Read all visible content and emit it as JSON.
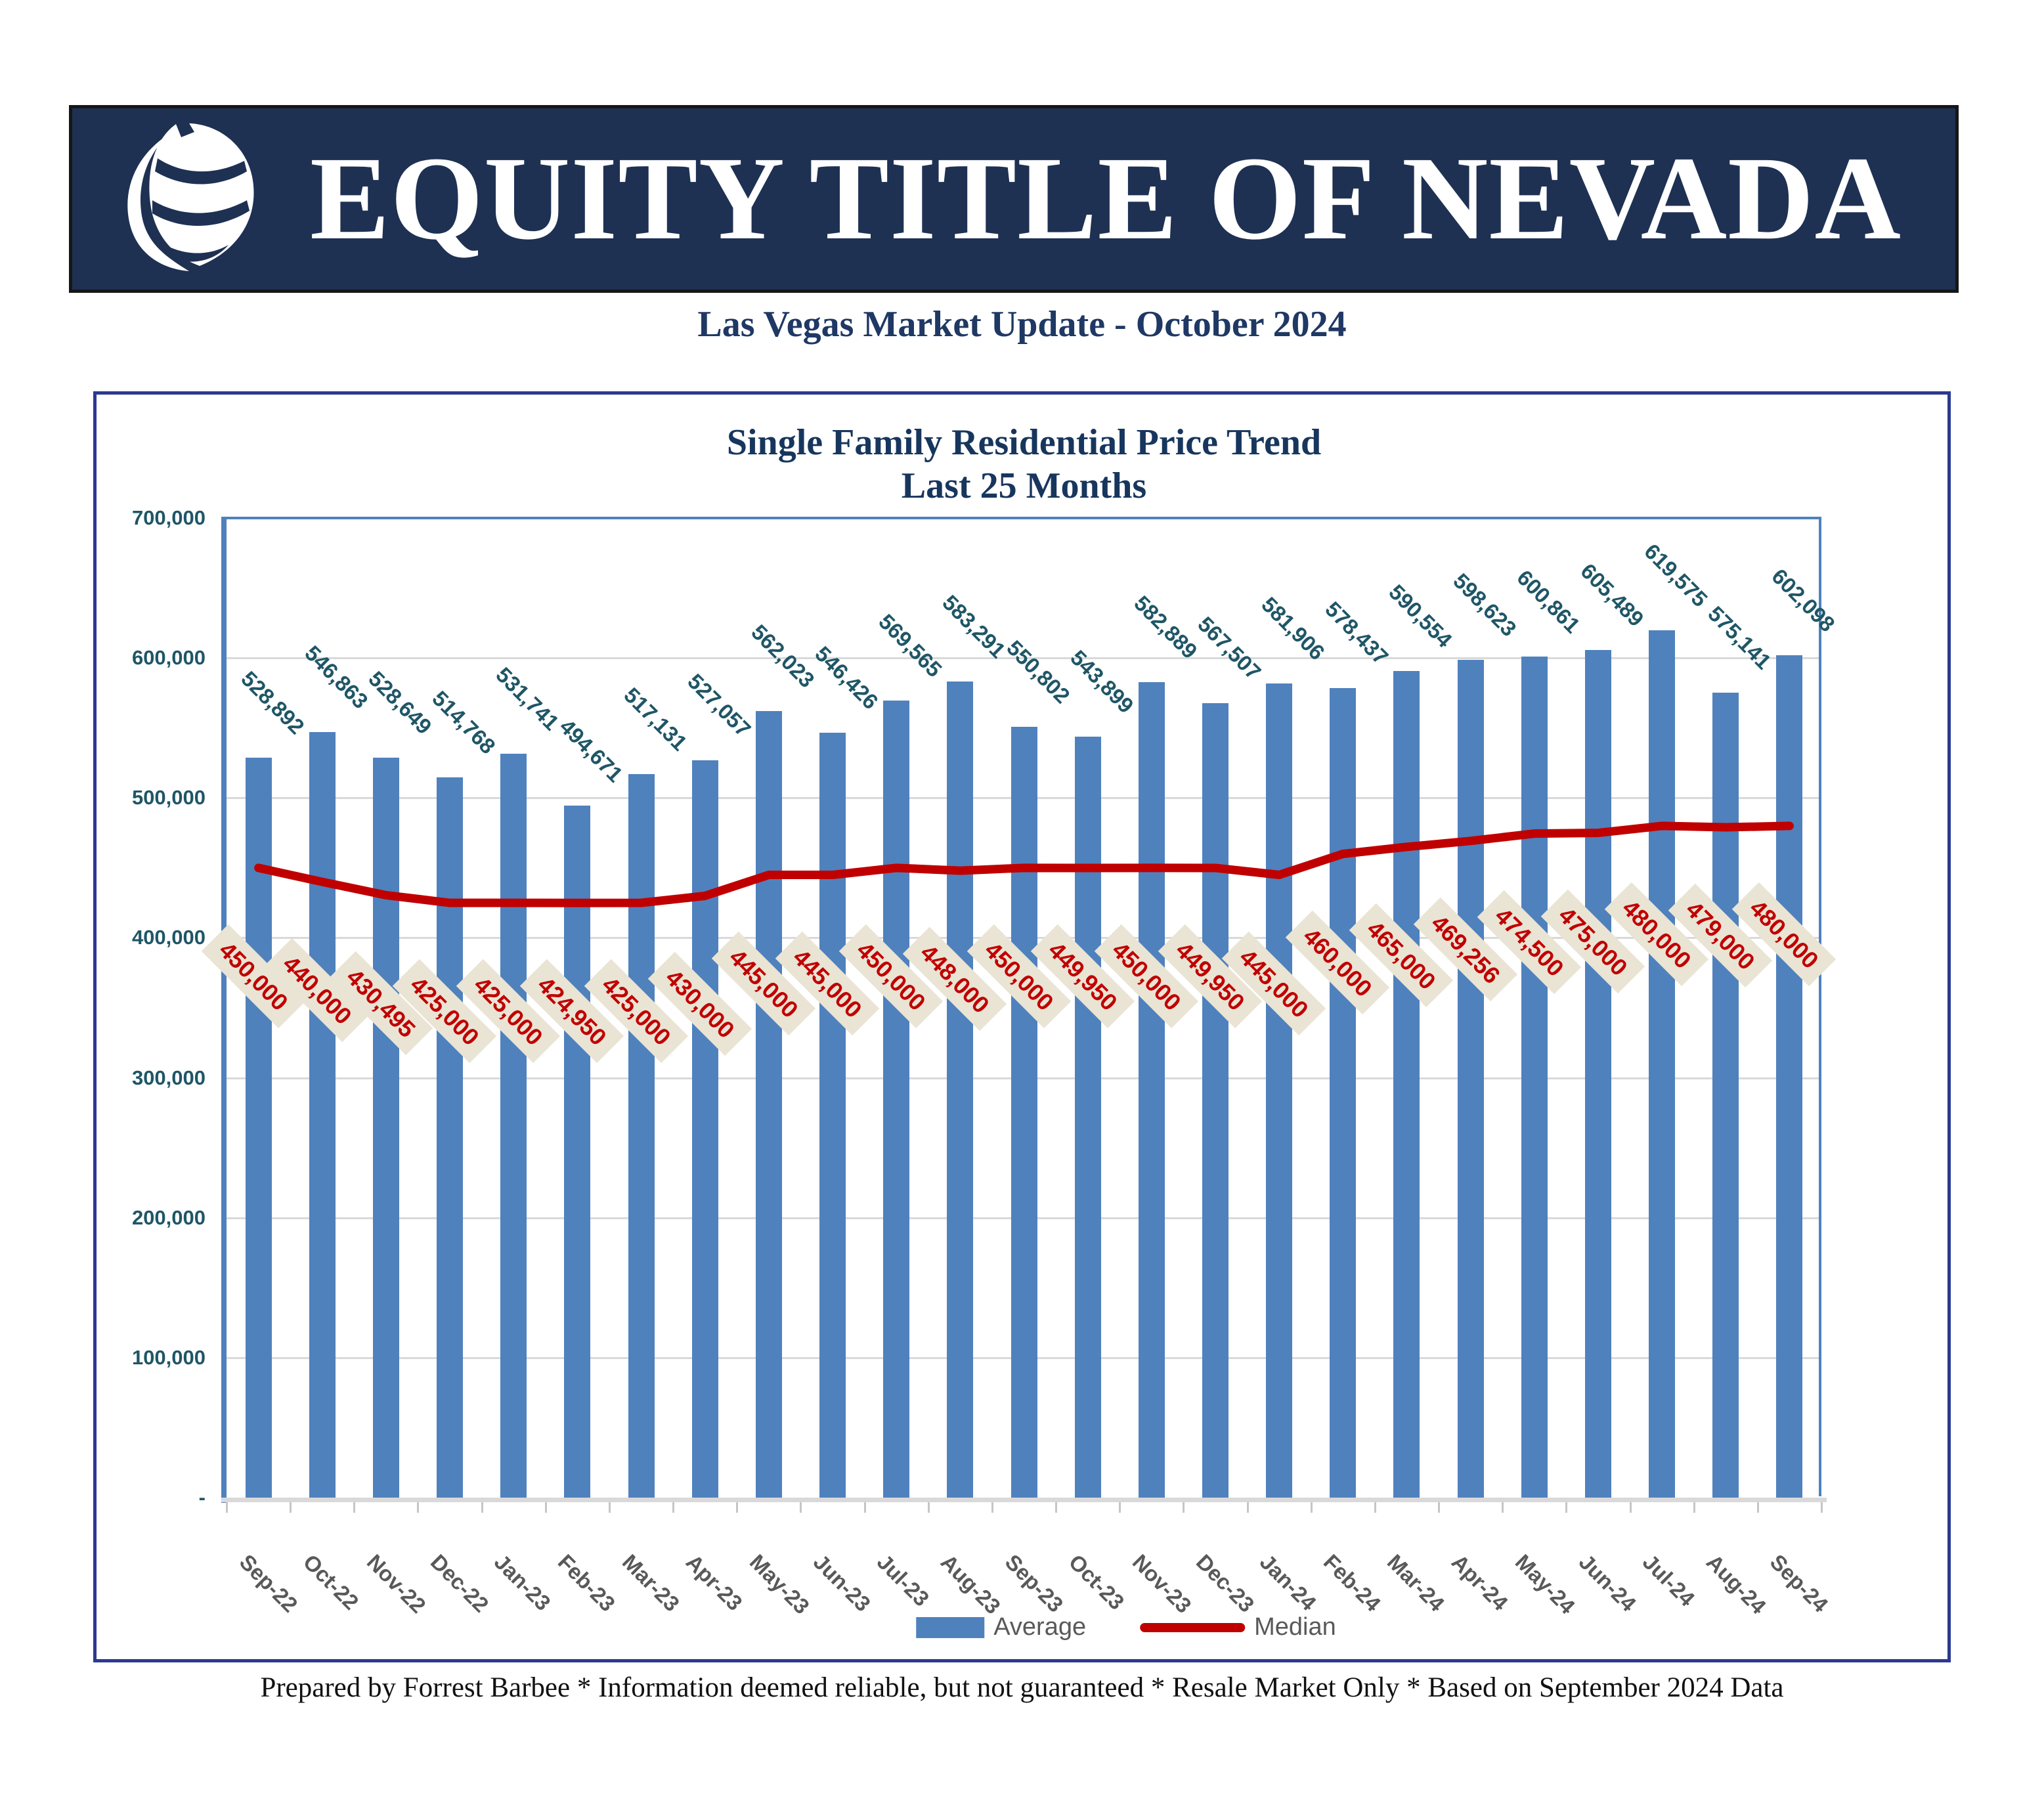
{
  "banner": {
    "title": "EQUITY TITLE OF NEVADA",
    "bg_color": "#1e3153",
    "logo_icon": "leaf-logo"
  },
  "subtitle": "Las Vegas Market Update - October 2024",
  "chart_data": {
    "type": "bar",
    "title_line1": "Single Family Residential Price Trend",
    "title_line2": "Last 25 Months",
    "categories": [
      "Sep-22",
      "Oct-22",
      "Nov-22",
      "Dec-22",
      "Jan-23",
      "Feb-23",
      "Mar-23",
      "Apr-23",
      "May-23",
      "Jun-23",
      "Jul-23",
      "Aug-23",
      "Sep-23",
      "Oct-23",
      "Nov-23",
      "Dec-23",
      "Jan-24",
      "Feb-24",
      "Mar-24",
      "Apr-24",
      "May-24",
      "Jun-24",
      "Jul-24",
      "Aug-24",
      "Sep-24"
    ],
    "series": [
      {
        "name": "Average",
        "type": "bar",
        "color": "#4f81bd",
        "values": [
          528892,
          546863,
          528649,
          514768,
          531741,
          494671,
          517131,
          527057,
          562023,
          546426,
          569565,
          583291,
          550802,
          543899,
          582889,
          567507,
          581906,
          578437,
          590554,
          598623,
          600861,
          605489,
          619575,
          575141,
          602098
        ]
      },
      {
        "name": "Median",
        "type": "line",
        "color": "#c00000",
        "values": [
          450000,
          440000,
          430495,
          425000,
          425000,
          424950,
          425000,
          430000,
          445000,
          445000,
          450000,
          448000,
          450000,
          449950,
          450000,
          449950,
          445000,
          460000,
          465000,
          469256,
          474500,
          475000,
          480000,
          479000,
          480000
        ]
      }
    ],
    "ylim": [
      0,
      700000
    ],
    "ytick_step": 100000,
    "ytick_labels": [
      "-",
      "100,000",
      "200,000",
      "300,000",
      "400,000",
      "500,000",
      "600,000",
      "700,000"
    ],
    "grid": "horizontal",
    "legend_position": "bottom",
    "bar_label_color": "#1f5666",
    "median_label_color": "#c00000",
    "median_label_bg": "#eae4d4",
    "xlabel_color": "#595959",
    "gridline_color": "#d9d9d9"
  },
  "legend": {
    "average_label": "Average",
    "median_label": "Median"
  },
  "footer": "Prepared by Forrest Barbee * Information deemed reliable, but not guaranteed * Resale Market Only * Based on September 2024 Data"
}
